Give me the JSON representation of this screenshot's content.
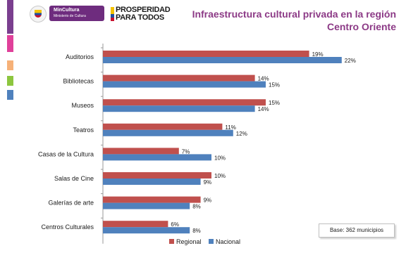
{
  "header": {
    "logo_ministry_name": "MinCultura",
    "logo_ministry_subtitle": "Ministerio de Cultura",
    "logo_prosperidad": "PROSPERIDAD PARA TODOS",
    "title": "Infraestructura cultural privada en la región Centro Oriente"
  },
  "side_stripe_colors": [
    "#7a3f8f",
    "#e0409a",
    "#f6b178",
    "#8dc63f",
    "#4f81bd"
  ],
  "note": "Base: 362 municipios",
  "chart_data": {
    "type": "bar",
    "orientation": "horizontal",
    "categories": [
      "Auditorios",
      "Bibliotecas",
      "Museos",
      "Teatros",
      "Casas de la Cultura",
      "Salas de Cine",
      "Galerías de arte",
      "Centros Culturales"
    ],
    "series": [
      {
        "name": "Regional",
        "values": [
          19,
          14,
          15,
          11,
          7,
          10,
          9,
          6
        ],
        "labels": [
          "19%",
          "14%",
          "15%",
          "11%",
          "7%",
          "10%",
          "9%",
          "6%"
        ],
        "color": "#c0504d"
      },
      {
        "name": "Nacional",
        "values": [
          22,
          15,
          14,
          12,
          10,
          9,
          8,
          8
        ],
        "labels": [
          "22%",
          "15%",
          "14%",
          "12%",
          "10%",
          "9%",
          "8%",
          "8%"
        ],
        "color": "#4f81bd"
      }
    ],
    "xlim": [
      0,
      25
    ],
    "grid": false,
    "legend_position": "bottom"
  }
}
